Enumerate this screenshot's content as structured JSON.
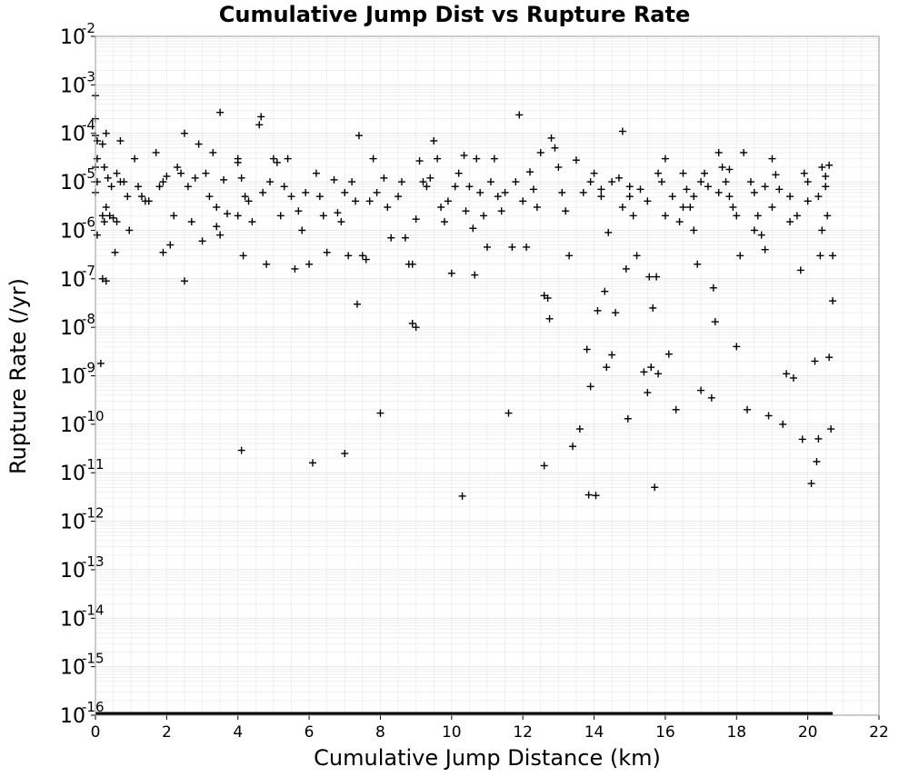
{
  "chart_data": {
    "type": "scatter",
    "title": "Cumulative Jump Dist vs Rupture Rate",
    "xlabel": "Cumulative Jump Distance (km)",
    "ylabel": "Rupture Rate (/yr)",
    "xlim": [
      0,
      22
    ],
    "ylim": [
      1e-16,
      0.01
    ],
    "yscale": "log",
    "grid": true,
    "legend": "none",
    "marker": "+",
    "colors": {
      "marker": "#000000",
      "grid": "#e6e6e6",
      "frame": "#999999"
    },
    "x_ticks": [
      "0",
      "2",
      "4",
      "6",
      "8",
      "10",
      "12",
      "14",
      "16",
      "18",
      "20",
      "22"
    ],
    "y_ticks": [
      {
        "base": "10",
        "exp": "-16"
      },
      {
        "base": "10",
        "exp": "-15"
      },
      {
        "base": "10",
        "exp": "-14"
      },
      {
        "base": "10",
        "exp": "-13"
      },
      {
        "base": "10",
        "exp": "-12"
      },
      {
        "base": "10",
        "exp": "-11"
      },
      {
        "base": "10",
        "exp": "-10"
      },
      {
        "base": "10",
        "exp": "-9"
      },
      {
        "base": "10",
        "exp": "-8"
      },
      {
        "base": "10",
        "exp": "-7"
      },
      {
        "base": "10",
        "exp": "-6"
      },
      {
        "base": "10",
        "exp": "-5"
      },
      {
        "base": "10",
        "exp": "-4"
      },
      {
        "base": "10",
        "exp": "-3"
      },
      {
        "base": "10",
        "exp": "-2"
      }
    ],
    "floor_series": {
      "y": 1e-16,
      "x_range": [
        0,
        20.7
      ]
    },
    "points": [
      [
        0.0,
        0.0006
      ],
      [
        0.0,
        0.0002
      ],
      [
        0.0,
        9e-05
      ],
      [
        0.05,
        7e-05
      ],
      [
        0.05,
        3e-05
      ],
      [
        0.0,
        2e-05
      ],
      [
        0.05,
        1e-05
      ],
      [
        0.0,
        6e-06
      ],
      [
        0.05,
        8e-07
      ],
      [
        0.15,
        1.8e-09
      ],
      [
        0.2,
        1e-07
      ],
      [
        0.3,
        9e-08
      ],
      [
        0.2,
        2e-06
      ],
      [
        0.3,
        3e-06
      ],
      [
        0.25,
        1.5e-06
      ],
      [
        0.4,
        2e-06
      ],
      [
        0.5,
        1.8e-06
      ],
      [
        0.55,
        3.5e-07
      ],
      [
        0.6,
        1.5e-05
      ],
      [
        0.7,
        1e-05
      ],
      [
        0.8,
        1e-05
      ],
      [
        0.9,
        5e-06
      ],
      [
        0.7,
        7e-05
      ],
      [
        0.2,
        6e-05
      ],
      [
        0.3,
        0.0001
      ],
      [
        0.25,
        2e-05
      ],
      [
        0.35,
        1.2e-05
      ],
      [
        0.45,
        8e-06
      ],
      [
        0.6,
        1.5e-06
      ],
      [
        0.95,
        1e-06
      ],
      [
        1.1,
        3e-05
      ],
      [
        1.2,
        8e-06
      ],
      [
        1.3,
        5e-06
      ],
      [
        1.4,
        4e-06
      ],
      [
        1.5,
        4e-06
      ],
      [
        1.7,
        4e-05
      ],
      [
        1.8,
        8e-06
      ],
      [
        1.9,
        1e-05
      ],
      [
        2.0,
        1.3e-05
      ],
      [
        1.9,
        3.5e-07
      ],
      [
        2.1,
        5e-07
      ],
      [
        2.2,
        2e-06
      ],
      [
        2.3,
        2e-05
      ],
      [
        2.4,
        1.5e-05
      ],
      [
        2.5,
        0.0001
      ],
      [
        2.5,
        9e-08
      ],
      [
        2.6,
        8e-06
      ],
      [
        2.7,
        1.5e-06
      ],
      [
        2.8,
        1.2e-05
      ],
      [
        2.9,
        6e-05
      ],
      [
        3.0,
        6e-07
      ],
      [
        3.1,
        1.5e-05
      ],
      [
        3.2,
        5e-06
      ],
      [
        3.3,
        4e-05
      ],
      [
        3.4,
        3e-06
      ],
      [
        3.4,
        1.2e-06
      ],
      [
        3.5,
        0.00027
      ],
      [
        3.5,
        8e-07
      ],
      [
        3.6,
        1.1e-05
      ],
      [
        3.7,
        2.2e-06
      ],
      [
        4.0,
        3e-05
      ],
      [
        4.0,
        2.5e-05
      ],
      [
        4.1,
        1.2e-05
      ],
      [
        4.15,
        3e-07
      ],
      [
        4.0,
        2e-06
      ],
      [
        4.2,
        5e-06
      ],
      [
        4.3,
        4e-06
      ],
      [
        4.4,
        1.5e-06
      ],
      [
        4.1,
        2.9e-11
      ],
      [
        4.6,
        0.00015
      ],
      [
        4.65,
        0.00022
      ],
      [
        4.7,
        6e-06
      ],
      [
        4.8,
        2e-07
      ],
      [
        4.9,
        1e-05
      ],
      [
        5.0,
        3e-05
      ],
      [
        5.1,
        2.5e-05
      ],
      [
        5.2,
        2e-06
      ],
      [
        5.3,
        8e-06
      ],
      [
        5.4,
        3e-05
      ],
      [
        5.5,
        5e-06
      ],
      [
        5.6,
        1.6e-07
      ],
      [
        5.7,
        2.5e-06
      ],
      [
        5.8,
        1e-06
      ],
      [
        5.9,
        6e-06
      ],
      [
        6.0,
        2e-07
      ],
      [
        6.1,
        1.6e-11
      ],
      [
        6.2,
        1.5e-05
      ],
      [
        6.3,
        5e-06
      ],
      [
        6.4,
        2e-06
      ],
      [
        6.5,
        3.5e-07
      ],
      [
        6.7,
        1.1e-05
      ],
      [
        6.8,
        2.3e-06
      ],
      [
        6.9,
        1.5e-06
      ],
      [
        7.0,
        6e-06
      ],
      [
        7.0,
        2.5e-11
      ],
      [
        7.1,
        3e-07
      ],
      [
        7.2,
        1e-05
      ],
      [
        7.3,
        4e-06
      ],
      [
        7.35,
        3e-08
      ],
      [
        7.4,
        9e-05
      ],
      [
        7.5,
        3e-07
      ],
      [
        7.6,
        2.5e-07
      ],
      [
        7.7,
        4e-06
      ],
      [
        7.8,
        3e-05
      ],
      [
        7.9,
        6e-06
      ],
      [
        8.0,
        1.7e-10
      ],
      [
        8.1,
        1.2e-05
      ],
      [
        8.2,
        3e-06
      ],
      [
        8.3,
        7e-07
      ],
      [
        8.5,
        5e-06
      ],
      [
        8.6,
        1e-05
      ],
      [
        8.7,
        7e-07
      ],
      [
        8.8,
        2e-07
      ],
      [
        8.9,
        2e-07
      ],
      [
        8.9,
        1.2e-08
      ],
      [
        9.0,
        1e-08
      ],
      [
        9.0,
        1.7e-06
      ],
      [
        9.1,
        2.7e-05
      ],
      [
        9.2,
        1e-05
      ],
      [
        9.3,
        8e-06
      ],
      [
        9.4,
        1.2e-05
      ],
      [
        9.5,
        7e-05
      ],
      [
        9.6,
        3e-05
      ],
      [
        9.7,
        3e-06
      ],
      [
        9.8,
        1.5e-06
      ],
      [
        9.9,
        4e-06
      ],
      [
        10.0,
        1.3e-07
      ],
      [
        10.1,
        8e-06
      ],
      [
        10.2,
        1.5e-05
      ],
      [
        10.3,
        3.3e-12
      ],
      [
        10.35,
        3.5e-05
      ],
      [
        10.4,
        2.5e-06
      ],
      [
        10.5,
        8e-06
      ],
      [
        10.6,
        1.1e-06
      ],
      [
        10.65,
        1.2e-07
      ],
      [
        10.7,
        3e-05
      ],
      [
        10.8,
        6e-06
      ],
      [
        10.9,
        2e-06
      ],
      [
        11.0,
        4.5e-07
      ],
      [
        11.1,
        1e-05
      ],
      [
        11.2,
        3e-05
      ],
      [
        11.3,
        5e-06
      ],
      [
        11.4,
        2.5e-06
      ],
      [
        11.5,
        6e-06
      ],
      [
        11.6,
        1.7e-10
      ],
      [
        11.7,
        4.5e-07
      ],
      [
        11.8,
        1e-05
      ],
      [
        11.9,
        0.00024
      ],
      [
        12.0,
        4e-06
      ],
      [
        12.1,
        4.5e-07
      ],
      [
        12.2,
        1.6e-05
      ],
      [
        12.3,
        7e-06
      ],
      [
        12.4,
        3e-06
      ],
      [
        12.5,
        4e-05
      ],
      [
        12.6,
        1.4e-11
      ],
      [
        12.6,
        4.5e-08
      ],
      [
        12.7,
        4e-08
      ],
      [
        12.75,
        1.5e-08
      ],
      [
        12.8,
        8e-05
      ],
      [
        12.9,
        5e-05
      ],
      [
        13.0,
        2e-05
      ],
      [
        13.1,
        6e-06
      ],
      [
        13.2,
        2.5e-06
      ],
      [
        13.3,
        3e-07
      ],
      [
        13.4,
        3.5e-11
      ],
      [
        13.5,
        2.8e-05
      ],
      [
        13.6,
        8e-11
      ],
      [
        13.7,
        6e-06
      ],
      [
        13.8,
        3.5e-09
      ],
      [
        13.85,
        3.5e-12
      ],
      [
        13.9,
        6e-10
      ],
      [
        14.0,
        1.5e-05
      ],
      [
        14.05,
        3.4e-12
      ],
      [
        14.1,
        2.2e-08
      ],
      [
        14.2,
        5e-06
      ],
      [
        14.3,
        5.5e-08
      ],
      [
        14.35,
        1.5e-09
      ],
      [
        14.4,
        9e-07
      ],
      [
        14.5,
        2.7e-09
      ],
      [
        14.6,
        2e-08
      ],
      [
        14.7,
        1.2e-05
      ],
      [
        14.8,
        0.00011
      ],
      [
        14.9,
        1.6e-07
      ],
      [
        14.95,
        1.3e-10
      ],
      [
        15.0,
        5e-06
      ],
      [
        15.1,
        2e-06
      ],
      [
        15.2,
        3e-07
      ],
      [
        15.3,
        7e-06
      ],
      [
        15.4,
        1.2e-09
      ],
      [
        15.5,
        4.5e-10
      ],
      [
        15.55,
        1.1e-07
      ],
      [
        15.6,
        1.5e-09
      ],
      [
        15.65,
        2.5e-08
      ],
      [
        15.7,
        5e-12
      ],
      [
        15.75,
        1.1e-07
      ],
      [
        15.8,
        1.1e-09
      ],
      [
        15.9,
        1e-05
      ],
      [
        16.0,
        3e-05
      ],
      [
        16.1,
        2.8e-09
      ],
      [
        16.2,
        5e-06
      ],
      [
        16.3,
        2e-10
      ],
      [
        16.4,
        1.5e-06
      ],
      [
        16.5,
        1.5e-05
      ],
      [
        16.6,
        7e-06
      ],
      [
        16.7,
        3e-06
      ],
      [
        16.8,
        1e-06
      ],
      [
        16.9,
        2e-07
      ],
      [
        17.0,
        5e-10
      ],
      [
        17.1,
        1.5e-05
      ],
      [
        17.2,
        8e-06
      ],
      [
        17.3,
        3.5e-10
      ],
      [
        17.35,
        6.5e-08
      ],
      [
        17.4,
        1.3e-08
      ],
      [
        17.5,
        4e-05
      ],
      [
        17.6,
        2e-05
      ],
      [
        17.7,
        1e-05
      ],
      [
        17.8,
        5e-06
      ],
      [
        17.9,
        3e-06
      ],
      [
        18.0,
        4e-09
      ],
      [
        18.1,
        3e-07
      ],
      [
        18.2,
        4e-05
      ],
      [
        18.3,
        2e-10
      ],
      [
        18.4,
        1e-05
      ],
      [
        18.5,
        6e-06
      ],
      [
        18.6,
        2e-06
      ],
      [
        18.7,
        8e-07
      ],
      [
        18.8,
        4e-07
      ],
      [
        18.9,
        1.5e-10
      ],
      [
        19.0,
        3e-05
      ],
      [
        19.1,
        1.4e-05
      ],
      [
        19.2,
        7e-06
      ],
      [
        19.3,
        1e-10
      ],
      [
        19.4,
        1.1e-09
      ],
      [
        19.5,
        5e-06
      ],
      [
        19.6,
        9e-10
      ],
      [
        19.7,
        2e-06
      ],
      [
        19.8,
        1.5e-07
      ],
      [
        19.85,
        4.9e-11
      ],
      [
        19.9,
        1.5e-05
      ],
      [
        20.0,
        1e-05
      ],
      [
        20.1,
        6e-12
      ],
      [
        20.2,
        2e-09
      ],
      [
        20.25,
        1.7e-11
      ],
      [
        20.3,
        5e-11
      ],
      [
        20.35,
        3e-07
      ],
      [
        20.4,
        2e-05
      ],
      [
        20.5,
        8e-06
      ],
      [
        20.55,
        2e-06
      ],
      [
        20.6,
        2.4e-09
      ],
      [
        20.65,
        8e-11
      ],
      [
        20.7,
        3.5e-08
      ],
      [
        20.7,
        3e-07
      ],
      [
        20.5,
        1.3e-05
      ],
      [
        20.6,
        2.2e-05
      ],
      [
        20.3,
        5e-06
      ],
      [
        14.2,
        7e-06
      ],
      [
        14.5,
        1e-05
      ],
      [
        15.0,
        8e-06
      ],
      [
        15.5,
        4e-06
      ],
      [
        16.0,
        2e-06
      ],
      [
        16.5,
        3e-06
      ],
      [
        17.0,
        1e-05
      ],
      [
        17.5,
        6e-06
      ],
      [
        18.0,
        2e-06
      ],
      [
        18.5,
        1e-06
      ],
      [
        19.0,
        3e-06
      ],
      [
        19.5,
        1.5e-06
      ],
      [
        20.0,
        4e-06
      ],
      [
        20.4,
        1e-06
      ],
      [
        18.8,
        8e-06
      ],
      [
        17.8,
        1.8e-05
      ],
      [
        16.8,
        5e-06
      ],
      [
        15.8,
        1.5e-05
      ],
      [
        14.8,
        3e-06
      ],
      [
        13.9,
        1e-05
      ]
    ]
  }
}
